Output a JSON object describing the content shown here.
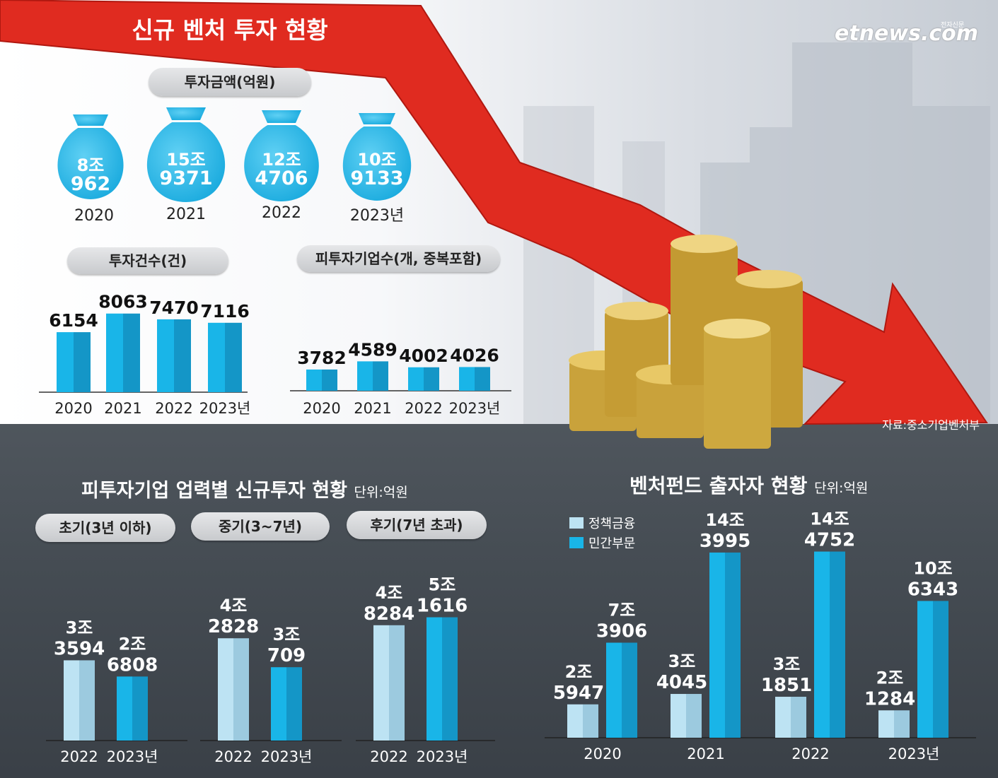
{
  "brand": "etnews.com",
  "brand_sub": "전자신문",
  "title": "신규 벤처 투자 현황",
  "source": "자료:중소기업벤처부",
  "colors": {
    "cyan": "#19b5e8",
    "cyan_dark": "#1496c7",
    "pale": "#bde3f3",
    "pale_dark": "#9ccadf",
    "arrow": "#e02b20",
    "pill": "#d0d2d5"
  },
  "investment_amount": {
    "label": "투자금액(억원)",
    "bags": [
      {
        "top": "8조",
        "bottom": "962",
        "year": "2020"
      },
      {
        "top": "15조",
        "bottom": "9371",
        "year": "2021"
      },
      {
        "top": "12조",
        "bottom": "4706",
        "year": "2022"
      },
      {
        "top": "10조",
        "bottom": "9133",
        "year": "2023년"
      }
    ]
  },
  "chart_data": [
    {
      "type": "bar",
      "title": "투자건수(건)",
      "categories": [
        "2020",
        "2021",
        "2022",
        "2023년"
      ],
      "values": [
        6154,
        8063,
        7470,
        7116
      ],
      "value_labels": [
        "6154",
        "8063",
        "7470",
        "7116"
      ]
    },
    {
      "type": "bar",
      "title": "피투자기업수(개, 중복포함)",
      "categories": [
        "2020",
        "2021",
        "2022",
        "2023년"
      ],
      "values": [
        3782,
        4589,
        4002,
        4026
      ],
      "value_labels": [
        "3782",
        "4589",
        "4002",
        "4026"
      ]
    },
    {
      "type": "bar",
      "title": "피투자기업 업력별 신규투자 현황",
      "unit": "단위:억원",
      "groups": [
        {
          "name": "초기(3년 이하)",
          "categories": [
            "2022",
            "2023년"
          ],
          "values": [
            33594,
            26808
          ],
          "value_labels": [
            [
              "3조",
              "3594"
            ],
            [
              "2조",
              "6808"
            ]
          ]
        },
        {
          "name": "중기(3~7년)",
          "categories": [
            "2022",
            "2023년"
          ],
          "values": [
            42828,
            30709
          ],
          "value_labels": [
            [
              "4조",
              "2828"
            ],
            [
              "3조",
              "709"
            ]
          ]
        },
        {
          "name": "후기(7년 초과)",
          "categories": [
            "2022",
            "2023년"
          ],
          "values": [
            48284,
            51616
          ],
          "value_labels": [
            [
              "4조",
              "8284"
            ],
            [
              "5조",
              "1616"
            ]
          ]
        }
      ]
    },
    {
      "type": "bar",
      "title": "벤처펀드 출자자 현황",
      "unit": "단위:억원",
      "categories": [
        "2020",
        "2021",
        "2022",
        "2023년"
      ],
      "series": [
        {
          "name": "정책금융",
          "values": [
            25947,
            34045,
            31851,
            21284
          ],
          "value_labels": [
            [
              "2조",
              "5947"
            ],
            [
              "3조",
              "4045"
            ],
            [
              "3조",
              "1851"
            ],
            [
              "2조",
              "1284"
            ]
          ]
        },
        {
          "name": "민간부문",
          "values": [
            73906,
            143995,
            144752,
            106343
          ],
          "value_labels": [
            [
              "7조",
              "3906"
            ],
            [
              "14조",
              "3995"
            ],
            [
              "14조",
              "4752"
            ],
            [
              "10조",
              "6343"
            ]
          ]
        }
      ]
    }
  ]
}
